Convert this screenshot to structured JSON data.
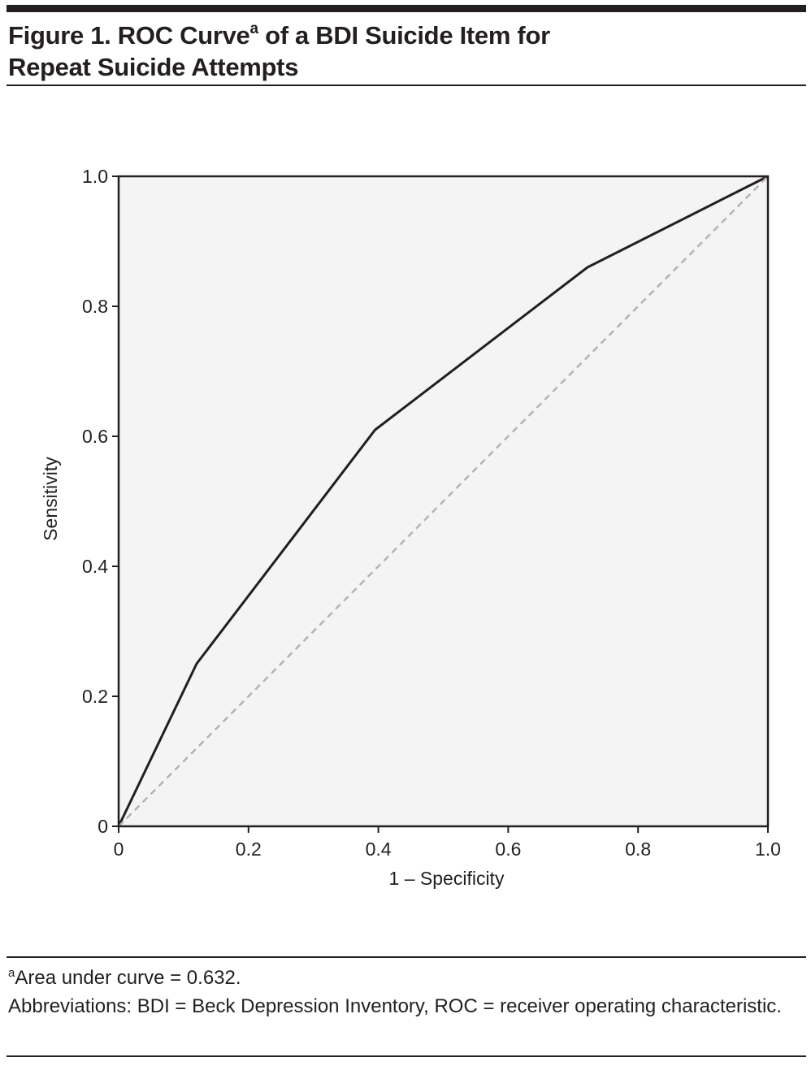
{
  "figure": {
    "title_line1": "Figure 1. ROC Curve",
    "title_sup": "a",
    "title_line1_rest": " of a BDI Suicide Item for",
    "title_line2": "Repeat Suicide Attempts"
  },
  "footnotes": {
    "auc_marker": "a",
    "auc_text": "Area under curve = 0.632.",
    "abbreviations": "Abbreviations: BDI = Beck Depression Inventory, ROC = receiver operating characteristic."
  },
  "colors": {
    "plot_background": "#f4f4f4",
    "curve": "#231f20",
    "reference_line": "#b3b3b3",
    "axis": "#231f20"
  },
  "chart_data": {
    "type": "line",
    "xlabel": "1 – Specificity",
    "ylabel": "Sensitivity",
    "xlim": [
      0,
      1
    ],
    "ylim": [
      0,
      1
    ],
    "x_ticks": [
      "0",
      "0.2",
      "0.4",
      "0.6",
      "0.8",
      "1.0"
    ],
    "y_ticks": [
      "0",
      "0.2",
      "0.4",
      "0.6",
      "0.8",
      "1.0"
    ],
    "grid": false,
    "legend": "none",
    "series": [
      {
        "x": [
          0,
          0.12,
          0.395,
          0.722,
          1.0
        ],
        "y": [
          0,
          0.25,
          0.61,
          0.86,
          1.0
        ],
        "style": "solid"
      },
      {
        "x": [
          0,
          1.0
        ],
        "y": [
          0,
          1.0
        ],
        "style": "dashed"
      }
    ]
  }
}
